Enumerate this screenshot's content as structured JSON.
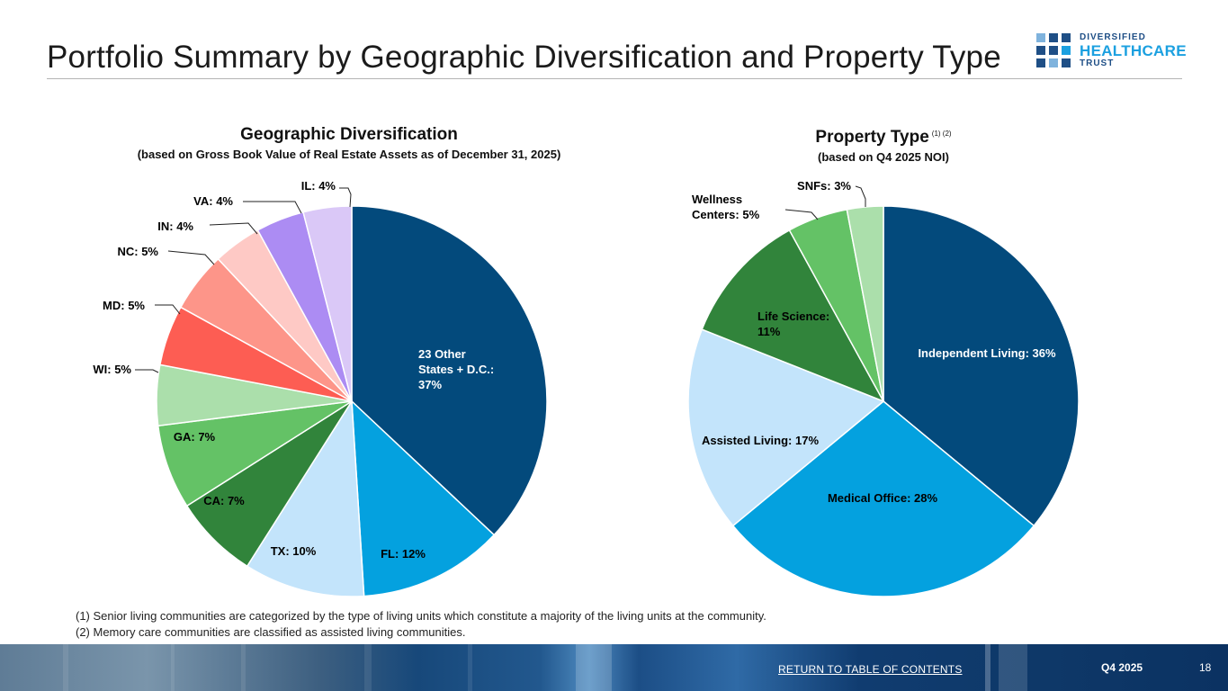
{
  "page": {
    "title": "Portfolio Summary by Geographic Diversification and Property Type"
  },
  "logo": {
    "line1": "DIVERSIFIED",
    "line2": "HEALTHCARE",
    "line3": "TRUST",
    "colors": [
      "#1f4f86",
      "#1ba0e0",
      "#7fb3dd"
    ]
  },
  "chart_data": [
    {
      "type": "pie",
      "title": "Geographic Diversification",
      "subtitle": "(based on Gross Book Value of Real Estate Assets as of December 31, 2025)",
      "unit": "%",
      "slices": [
        {
          "name": "23 Other States + D.C.",
          "value": 37,
          "label": "23 Other\nStates + D.C.:\n37%",
          "color": "#034a7c",
          "text_color": "#ffffff"
        },
        {
          "name": "FL",
          "value": 12,
          "label": "FL: 12%",
          "color": "#04a1df",
          "text_color": "#000000"
        },
        {
          "name": "TX",
          "value": 10,
          "label": "TX: 10%",
          "color": "#c3e4fb",
          "text_color": "#000000"
        },
        {
          "name": "CA",
          "value": 7,
          "label": "CA: 7%",
          "color": "#31843b",
          "text_color": "#000000"
        },
        {
          "name": "GA",
          "value": 7,
          "label": "GA: 7%",
          "color": "#64c266",
          "text_color": "#000000"
        },
        {
          "name": "WI",
          "value": 5,
          "label": "WI: 5%",
          "color": "#abdfab",
          "text_color": "#000000"
        },
        {
          "name": "MD",
          "value": 5,
          "label": "MD: 5%",
          "color": "#fd5d53",
          "text_color": "#000000"
        },
        {
          "name": "NC",
          "value": 5,
          "label": "NC: 5%",
          "color": "#fd9589",
          "text_color": "#000000"
        },
        {
          "name": "IN",
          "value": 4,
          "label": "IN: 4%",
          "color": "#fec9c5",
          "text_color": "#000000"
        },
        {
          "name": "VA",
          "value": 4,
          "label": "VA: 4%",
          "color": "#ac8cf3",
          "text_color": "#000000"
        },
        {
          "name": "IL",
          "value": 4,
          "label": "IL: 4%",
          "color": "#dac8f7",
          "text_color": "#000000"
        }
      ]
    },
    {
      "type": "pie",
      "title": "Property Type",
      "title_superscript": "(1) (2)",
      "subtitle": "(based on Q4 2025 NOI)",
      "unit": "%",
      "slices": [
        {
          "name": "Independent Living",
          "value": 36,
          "label": "Independent Living: 36%",
          "color": "#034a7c",
          "text_color": "#ffffff"
        },
        {
          "name": "Medical Office",
          "value": 28,
          "label": "Medical Office: 28%",
          "color": "#04a1df",
          "text_color": "#000000"
        },
        {
          "name": "Assisted Living",
          "value": 17,
          "label": "Assisted Living: 17%",
          "color": "#c3e4fb",
          "text_color": "#000000"
        },
        {
          "name": "Life Science",
          "value": 11,
          "label": "Life Science:\n11%",
          "color": "#31843b",
          "text_color": "#000000"
        },
        {
          "name": "Wellness Centers",
          "value": 5,
          "label": "Wellness\nCenters: 5%",
          "color": "#64c266",
          "text_color": "#000000"
        },
        {
          "name": "SNFs",
          "value": 3,
          "label": "SNFs: 3%",
          "color": "#abdfab",
          "text_color": "#000000"
        }
      ]
    }
  ],
  "footnotes": [
    "(1)  Senior living communities are categorized by the type of living units which constitute a majority of the living units at the community.",
    "(2)  Memory care communities are classified as assisted living communities."
  ],
  "footer": {
    "link": "RETURN TO TABLE OF CONTENTS",
    "period": "Q4 2025",
    "page_number": "18"
  }
}
